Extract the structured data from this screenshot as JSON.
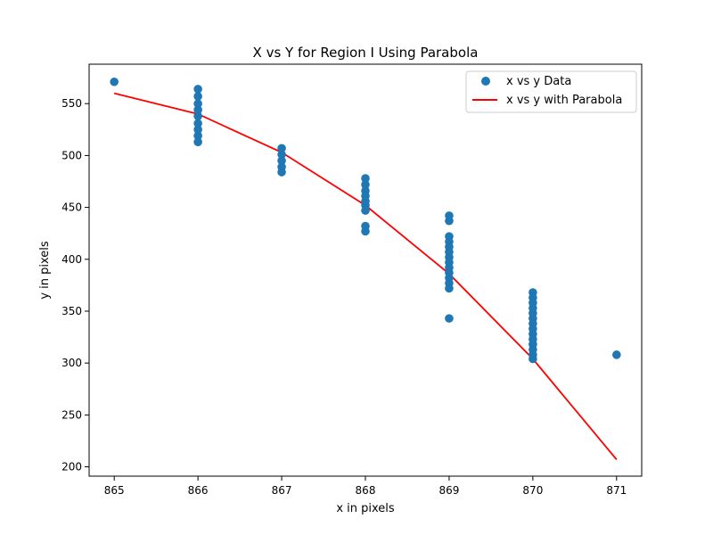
{
  "chart_data": {
    "type": "scatter",
    "title": "X vs Y for Region I Using Parabola",
    "xlabel": "x in pixels",
    "ylabel": "y in pixels",
    "xlim": [
      864.7,
      871.3
    ],
    "ylim": [
      191,
      588
    ],
    "x_ticks": [
      865,
      866,
      867,
      868,
      869,
      870,
      871
    ],
    "y_ticks": [
      200,
      250,
      300,
      350,
      400,
      450,
      500,
      550
    ],
    "grid": false,
    "legend_position": "top-right",
    "series": [
      {
        "name": "x vs y Data",
        "kind": "scatter",
        "color": "#1f77b4",
        "points": [
          [
            865,
            571
          ],
          [
            866,
            564
          ],
          [
            866,
            557
          ],
          [
            866,
            550
          ],
          [
            866,
            544
          ],
          [
            866,
            538
          ],
          [
            866,
            531
          ],
          [
            866,
            525
          ],
          [
            866,
            519
          ],
          [
            866,
            513
          ],
          [
            867,
            507
          ],
          [
            867,
            501
          ],
          [
            867,
            495
          ],
          [
            867,
            489
          ],
          [
            867,
            484
          ],
          [
            868,
            478
          ],
          [
            868,
            472
          ],
          [
            868,
            466
          ],
          [
            868,
            461
          ],
          [
            868,
            456
          ],
          [
            868,
            452
          ],
          [
            868,
            447
          ],
          [
            868,
            432
          ],
          [
            868,
            427
          ],
          [
            869,
            442
          ],
          [
            869,
            437
          ],
          [
            869,
            422
          ],
          [
            869,
            417
          ],
          [
            869,
            412
          ],
          [
            869,
            407
          ],
          [
            869,
            402
          ],
          [
            869,
            397
          ],
          [
            869,
            392
          ],
          [
            869,
            387
          ],
          [
            869,
            382
          ],
          [
            869,
            377
          ],
          [
            869,
            372
          ],
          [
            869,
            343
          ],
          [
            870,
            368
          ],
          [
            870,
            363
          ],
          [
            870,
            358
          ],
          [
            870,
            353
          ],
          [
            870,
            348
          ],
          [
            870,
            343
          ],
          [
            870,
            338
          ],
          [
            870,
            333
          ],
          [
            870,
            328
          ],
          [
            870,
            323
          ],
          [
            870,
            318
          ],
          [
            870,
            313
          ],
          [
            870,
            308
          ],
          [
            870,
            304
          ],
          [
            871,
            308
          ]
        ]
      },
      {
        "name": "x vs y with Parabola",
        "kind": "line",
        "color": "#ff0000",
        "points": [
          [
            865,
            560
          ],
          [
            866,
            540
          ],
          [
            867,
            503
          ],
          [
            868,
            452
          ],
          [
            869,
            386
          ],
          [
            870,
            304
          ],
          [
            871,
            207
          ]
        ]
      }
    ]
  }
}
